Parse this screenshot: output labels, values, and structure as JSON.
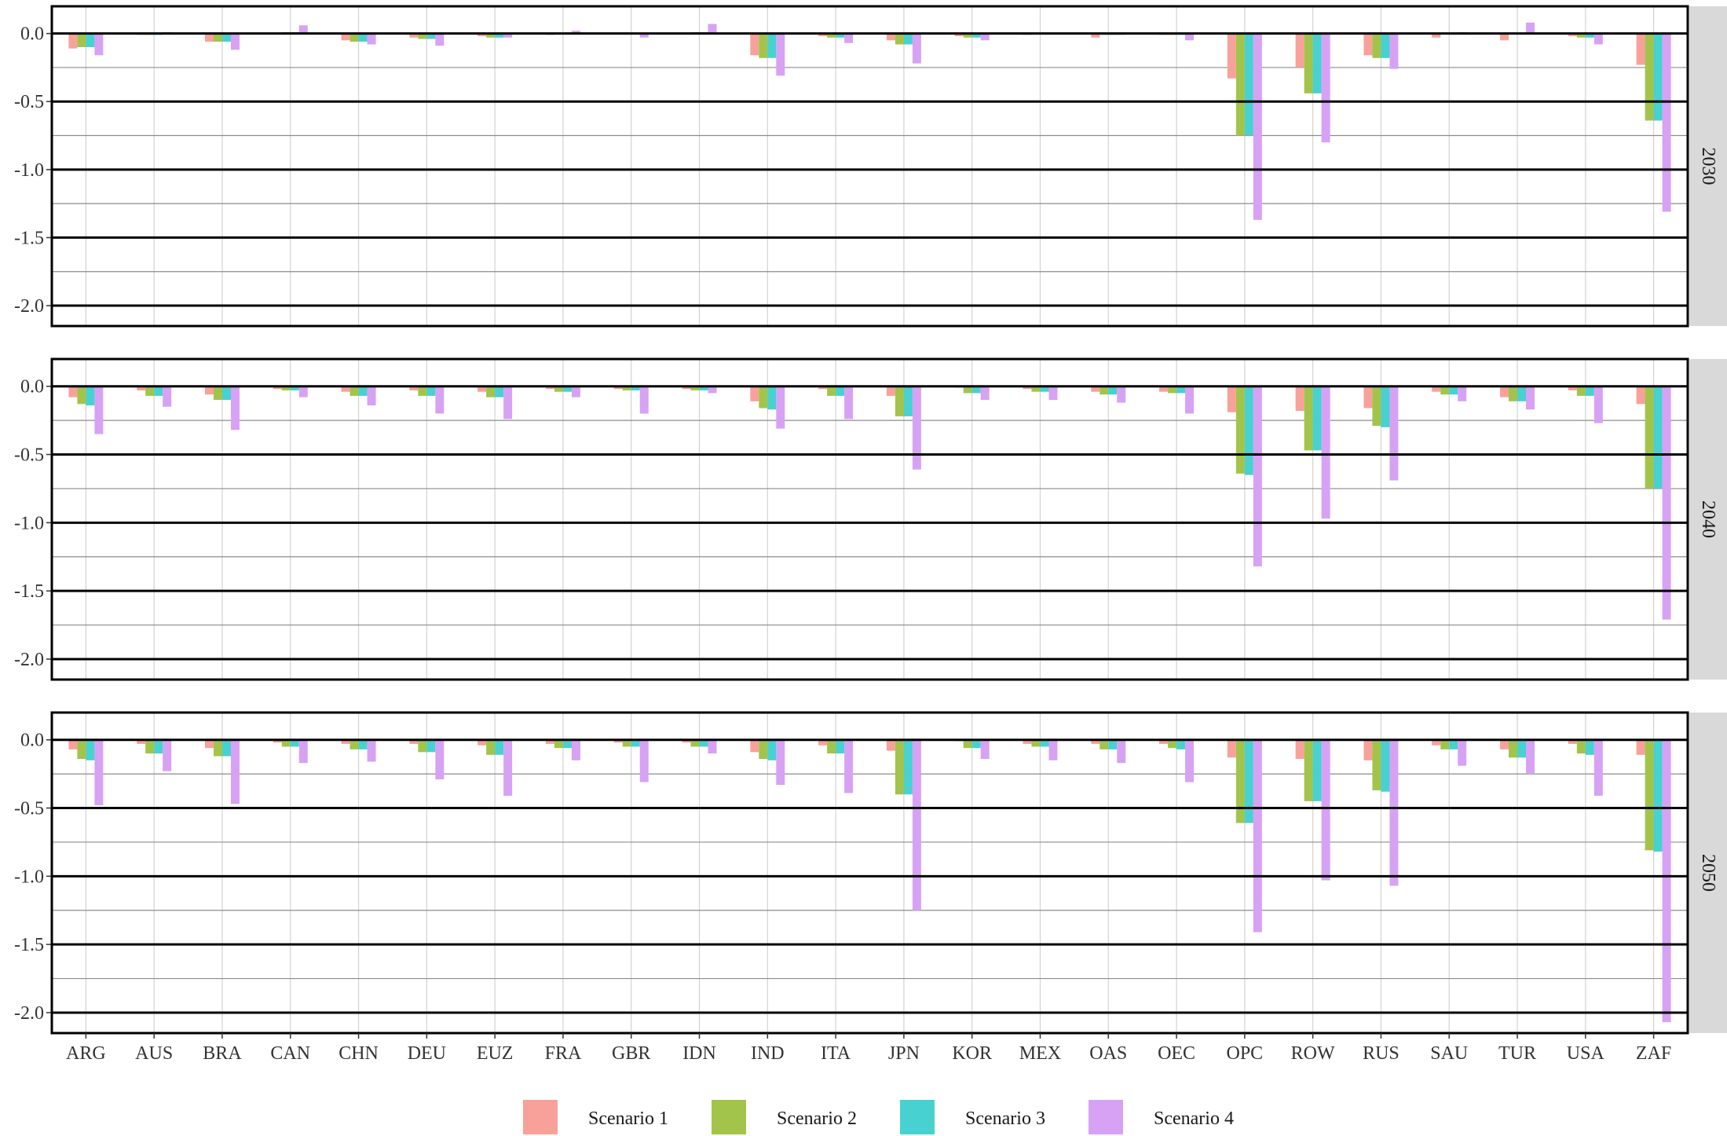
{
  "chart_data": {
    "type": "bar",
    "layout": "facet-rows",
    "title": "",
    "xlabel": "",
    "ylabel": "",
    "ylim": [
      -2.15,
      0.2
    ],
    "y_ticks": [
      0.0,
      -0.5,
      -1.0,
      -1.5,
      -2.0
    ],
    "y_tick_labels": [
      "0.0",
      "-0.5",
      "-1.0",
      "-1.5",
      "-2.0"
    ],
    "grid": true,
    "legend_position": "bottom",
    "categories": [
      "ARG",
      "AUS",
      "BRA",
      "CAN",
      "CHN",
      "DEU",
      "EUZ",
      "FRA",
      "GBR",
      "IDN",
      "IND",
      "ITA",
      "JPN",
      "KOR",
      "MEX",
      "OAS",
      "OEC",
      "OPC",
      "ROW",
      "RUS",
      "SAU",
      "TUR",
      "USA",
      "ZAF"
    ],
    "series_colors": [
      "#F8A19A",
      "#A3C44A",
      "#48D1D1",
      "#D7A2F4"
    ],
    "legend": [
      "Scenario 1",
      "Scenario 2",
      "Scenario 3",
      "Scenario 4"
    ],
    "facets": [
      {
        "label": "2030",
        "series": [
          {
            "name": "Scenario 1",
            "values": [
              -0.11,
              -0.01,
              -0.06,
              0.0,
              -0.05,
              -0.03,
              -0.02,
              -0.01,
              0.0,
              0.0,
              -0.16,
              -0.02,
              -0.05,
              -0.02,
              -0.01,
              -0.03,
              -0.01,
              -0.33,
              -0.25,
              -0.16,
              -0.03,
              -0.05,
              -0.02,
              -0.23
            ]
          },
          {
            "name": "Scenario 2",
            "values": [
              -0.1,
              -0.01,
              -0.06,
              0.01,
              -0.06,
              -0.04,
              -0.03,
              0.0,
              0.0,
              0.01,
              -0.18,
              -0.03,
              -0.08,
              -0.03,
              0.0,
              -0.01,
              -0.01,
              -0.75,
              -0.44,
              -0.18,
              0.0,
              0.0,
              -0.03,
              -0.64
            ]
          },
          {
            "name": "Scenario 3",
            "values": [
              -0.1,
              -0.01,
              -0.06,
              0.01,
              -0.06,
              -0.04,
              -0.03,
              0.0,
              0.0,
              0.01,
              -0.18,
              -0.03,
              -0.08,
              -0.03,
              0.0,
              -0.01,
              -0.01,
              -0.75,
              -0.44,
              -0.18,
              0.0,
              0.0,
              -0.03,
              -0.64
            ]
          },
          {
            "name": "Scenario 4",
            "values": [
              -0.16,
              0.01,
              -0.12,
              0.06,
              -0.08,
              -0.09,
              -0.03,
              0.02,
              -0.03,
              0.07,
              -0.31,
              -0.07,
              -0.22,
              -0.05,
              0.0,
              -0.01,
              -0.05,
              -1.37,
              -0.8,
              -0.26,
              0.01,
              0.08,
              -0.08,
              -1.31
            ]
          }
        ]
      },
      {
        "label": "2040",
        "series": [
          {
            "name": "Scenario 1",
            "values": [
              -0.08,
              -0.03,
              -0.06,
              -0.02,
              -0.04,
              -0.03,
              -0.04,
              -0.02,
              -0.02,
              -0.02,
              -0.11,
              -0.02,
              -0.07,
              -0.01,
              -0.02,
              -0.04,
              -0.04,
              -0.19,
              -0.18,
              -0.16,
              -0.04,
              -0.08,
              -0.03,
              -0.13
            ]
          },
          {
            "name": "Scenario 2",
            "values": [
              -0.13,
              -0.07,
              -0.1,
              -0.03,
              -0.07,
              -0.07,
              -0.08,
              -0.04,
              -0.03,
              -0.03,
              -0.16,
              -0.07,
              -0.22,
              -0.05,
              -0.04,
              -0.06,
              -0.05,
              -0.64,
              -0.47,
              -0.29,
              -0.06,
              -0.11,
              -0.07,
              -0.75
            ]
          },
          {
            "name": "Scenario 3",
            "values": [
              -0.14,
              -0.07,
              -0.1,
              -0.03,
              -0.07,
              -0.07,
              -0.08,
              -0.04,
              -0.03,
              -0.03,
              -0.17,
              -0.07,
              -0.22,
              -0.05,
              -0.04,
              -0.06,
              -0.05,
              -0.65,
              -0.47,
              -0.3,
              -0.06,
              -0.11,
              -0.07,
              -0.75
            ]
          },
          {
            "name": "Scenario 4",
            "values": [
              -0.35,
              -0.15,
              -0.32,
              -0.08,
              -0.14,
              -0.2,
              -0.24,
              -0.08,
              -0.2,
              -0.05,
              -0.31,
              -0.24,
              -0.61,
              -0.1,
              -0.1,
              -0.12,
              -0.2,
              -1.32,
              -0.97,
              -0.69,
              -0.11,
              -0.17,
              -0.27,
              -1.71
            ]
          }
        ]
      },
      {
        "label": "2050",
        "series": [
          {
            "name": "Scenario 1",
            "values": [
              -0.07,
              -0.03,
              -0.06,
              -0.02,
              -0.03,
              -0.03,
              -0.04,
              -0.03,
              -0.02,
              -0.02,
              -0.09,
              -0.04,
              -0.08,
              -0.01,
              -0.03,
              -0.03,
              -0.03,
              -0.13,
              -0.14,
              -0.15,
              -0.04,
              -0.07,
              -0.03,
              -0.11
            ]
          },
          {
            "name": "Scenario 2",
            "values": [
              -0.14,
              -0.1,
              -0.12,
              -0.05,
              -0.07,
              -0.09,
              -0.11,
              -0.06,
              -0.05,
              -0.05,
              -0.14,
              -0.1,
              -0.4,
              -0.06,
              -0.05,
              -0.07,
              -0.06,
              -0.61,
              -0.45,
              -0.37,
              -0.07,
              -0.13,
              -0.1,
              -0.81
            ]
          },
          {
            "name": "Scenario 3",
            "values": [
              -0.15,
              -0.1,
              -0.12,
              -0.05,
              -0.07,
              -0.09,
              -0.11,
              -0.06,
              -0.05,
              -0.05,
              -0.15,
              -0.1,
              -0.4,
              -0.06,
              -0.05,
              -0.07,
              -0.07,
              -0.61,
              -0.45,
              -0.38,
              -0.07,
              -0.13,
              -0.11,
              -0.82
            ]
          },
          {
            "name": "Scenario 4",
            "values": [
              -0.48,
              -0.23,
              -0.47,
              -0.17,
              -0.16,
              -0.29,
              -0.41,
              -0.15,
              -0.31,
              -0.1,
              -0.33,
              -0.39,
              -1.25,
              -0.14,
              -0.15,
              -0.17,
              -0.31,
              -1.41,
              -1.03,
              -1.07,
              -0.19,
              -0.25,
              -0.41,
              -2.07
            ]
          }
        ]
      }
    ]
  }
}
